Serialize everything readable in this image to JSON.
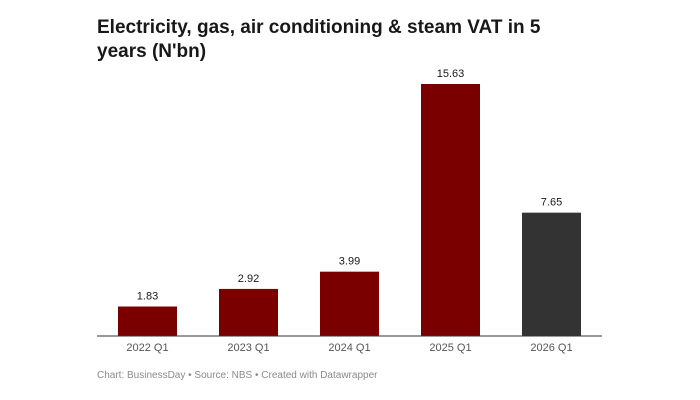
{
  "title": "Electricity, gas, air conditioning & steam VAT in 5 years (N'bn)",
  "footer": "Chart: BusinessDay • Source: NBS • Created with Datawrapper",
  "colors": {
    "primary_bar": "#7a0000",
    "highlight_bar": "#333333",
    "axis_line": "#333333"
  },
  "chart_data": {
    "type": "bar",
    "title": "Electricity, gas, air conditioning & steam VAT in 5 years (N'bn)",
    "xlabel": "",
    "ylabel": "",
    "categories": [
      "2022 Q1",
      "2023 Q1",
      "2024 Q1",
      "2025 Q1",
      "2026 Q1"
    ],
    "values": [
      1.83,
      2.92,
      3.99,
      15.63,
      7.65
    ],
    "value_labels": [
      "1.83",
      "2.92",
      "3.99",
      "15.63",
      "7.65"
    ],
    "bar_colors": [
      "#7a0000",
      "#7a0000",
      "#7a0000",
      "#7a0000",
      "#333333"
    ],
    "ylim": [
      0,
      15.63
    ],
    "grid": false,
    "legend": "none",
    "data_labels": "above bars"
  }
}
